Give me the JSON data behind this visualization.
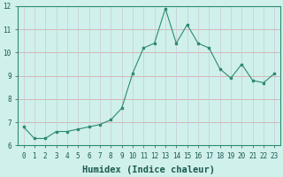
{
  "xlabel": "Humidex (Indice chaleur)",
  "x": [
    0,
    1,
    2,
    3,
    4,
    5,
    6,
    7,
    8,
    9,
    10,
    11,
    12,
    13,
    14,
    15,
    16,
    17,
    18,
    19,
    20,
    21,
    22,
    23
  ],
  "y": [
    6.8,
    6.3,
    6.3,
    6.6,
    6.6,
    6.7,
    6.8,
    6.9,
    7.1,
    7.6,
    9.1,
    10.2,
    10.4,
    11.9,
    10.4,
    11.2,
    10.4,
    10.2,
    9.3,
    8.9,
    9.5,
    8.8,
    8.7,
    9.1
  ],
  "ylim": [
    6,
    12
  ],
  "xlim_min": -0.5,
  "xlim_max": 23.5,
  "yticks": [
    6,
    7,
    8,
    9,
    10,
    11,
    12
  ],
  "xticks": [
    0,
    1,
    2,
    3,
    4,
    5,
    6,
    7,
    8,
    9,
    10,
    11,
    12,
    13,
    14,
    15,
    16,
    17,
    18,
    19,
    20,
    21,
    22,
    23
  ],
  "line_color": "#2d8b70",
  "marker_color": "#2d8b70",
  "bg_color": "#d0f0ec",
  "grid_color_h": "#d4a0a0",
  "grid_color_v": "#c8c8d8",
  "tick_label_fontsize": 5.5,
  "xlabel_fontsize": 7.5
}
